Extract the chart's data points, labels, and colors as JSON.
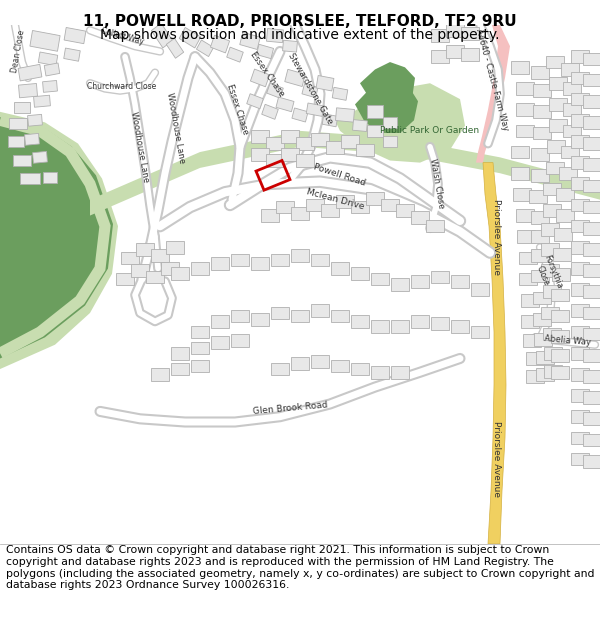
{
  "title_line1": "11, POWELL ROAD, PRIORSLEE, TELFORD, TF2 9RU",
  "title_line2": "Map shows position and indicative extent of the property.",
  "title_fontsize": 11,
  "subtitle_fontsize": 10,
  "footer_text": "Contains OS data © Crown copyright and database right 2021. This information is subject to Crown copyright and database rights 2023 and is reproduced with the permission of HM Land Registry. The polygons (including the associated geometry, namely x, y co-ordinates) are subject to Crown copyright and database rights 2023 Ordnance Survey 100026316.",
  "footer_fontsize": 8.5,
  "map_bg": "#ffffff",
  "fig_width": 6.0,
  "fig_height": 6.25
}
